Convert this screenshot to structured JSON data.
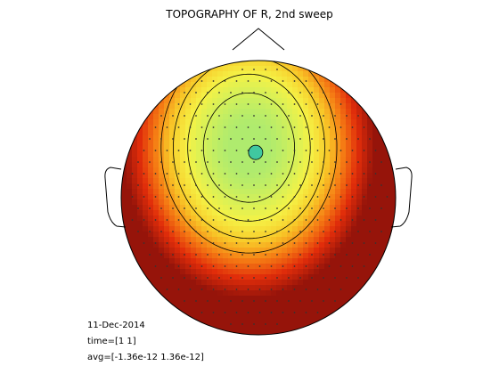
{
  "chart_data": {
    "type": "heatmap",
    "title": "TOPOGRAPHY OF R, 2nd sweep",
    "colormap": "autumn",
    "peak": {
      "x": -0.02,
      "y": 0.33,
      "value": 1.0
    },
    "field": {
      "sx": 0.9,
      "sy": 1.08,
      "tilt_x": -0.12,
      "tilt_y": 0.06,
      "base": 1.0
    },
    "contour_levels": [
      0.52,
      0.65,
      0.78,
      0.89
    ],
    "colors": {
      "outline": "#000000",
      "peak_marker": "#40c8a0",
      "background": "#ffffff"
    }
  },
  "annotations": {
    "date": "11-Dec-2014",
    "time": "time=[1 1]",
    "avg": "avg=[-1.36e-12 1.36e-12]"
  }
}
